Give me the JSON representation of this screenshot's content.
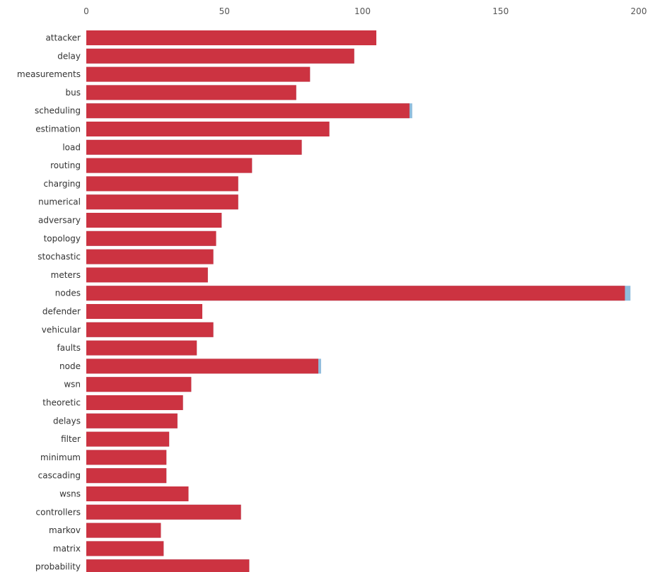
{
  "chart_data": {
    "type": "bar",
    "orientation": "horizontal",
    "x_axis_position": "top",
    "xlim": [
      0,
      200
    ],
    "x_ticks": [
      0,
      50,
      100,
      150,
      200
    ],
    "grid": false,
    "legend": "none",
    "categories": [
      "attacker",
      "delay",
      "measurements",
      "bus",
      "scheduling",
      "estimation",
      "load",
      "routing",
      "charging",
      "numerical",
      "adversary",
      "topology",
      "stochastic",
      "meters",
      "nodes",
      "defender",
      "vehicular",
      "faults",
      "node",
      "wsn",
      "theoretic",
      "delays",
      "filter",
      "minimum",
      "cascading",
      "wsns",
      "controllers",
      "markov",
      "matrix",
      "probability"
    ],
    "series": [
      {
        "color": "#cc3341",
        "values": [
          105,
          97,
          81,
          76,
          117,
          88,
          78,
          60,
          55,
          55,
          49,
          47,
          46,
          44,
          195,
          42,
          46,
          40,
          84,
          38,
          35,
          33,
          30,
          29,
          29,
          37,
          56,
          27,
          28,
          59
        ]
      },
      {
        "color": "#8fbcdc",
        "values": [
          105,
          97,
          81,
          76,
          118,
          88,
          78,
          60,
          55,
          55,
          49,
          47,
          46,
          44,
          197,
          42,
          46,
          40,
          85,
          38,
          35,
          33,
          30,
          29,
          29,
          37,
          56,
          27,
          28,
          59
        ]
      }
    ]
  }
}
